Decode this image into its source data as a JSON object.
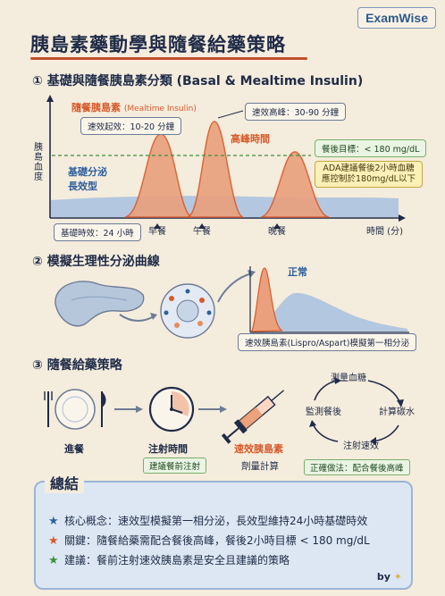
{
  "brand": "ExamWise",
  "title": "胰島素藥動學與隨餐給藥策略",
  "section1": {
    "title": "① 基礎與隨餐胰島素分類 (Basal & Mealtime Insulin)",
    "y_label": "胰島血度",
    "mealtime_label": "隨餐胰島素",
    "mealtime_label_en": "(Mealtime Insulin)",
    "onset_chip": "速效起效：10-20 分鐘",
    "peak_chip": "速效高峰：30-90 分鐘",
    "peak_label": "高峰時間",
    "basal_label_1": "基礎分泌",
    "basal_label_2": "長效型",
    "basal_duration_chip": "基礎時效：24 小時",
    "target_chip": "餐後目標：< 180 mg/dL",
    "ada_line1": "ADA建議餐後2小時血糖",
    "ada_line2": "應控制於180mg/dL以下",
    "meals": [
      "早餐",
      "午餐",
      "晚餐"
    ],
    "x_label": "時間 (分)"
  },
  "section2": {
    "title": "② 模擬生理性分泌曲線",
    "normal_label": "正常",
    "caption": "速效胰島素(Lispro/Aspart)模擬第一相分泌"
  },
  "section3": {
    "title": "③ 隨餐給藥策略",
    "step1_title": "進餐",
    "step2_title": "注射時間",
    "step2_tag": "建議餐前注射",
    "step3_title": "速效胰島素",
    "step3_sub": "劑量計算",
    "cycle": [
      "測量血糖",
      "計算碳水",
      "注射速效",
      "監測餐後"
    ],
    "correct_tag": "正確做法：配合餐後高峰"
  },
  "summary": {
    "title": "總結",
    "items": [
      {
        "text": "核心概念：速效型模擬第一相分泌，長效型維持24小時基礎時效",
        "color": "#2e5f9c"
      },
      {
        "text": "關鍵：隨餐給藥需配合餐後高峰，餐後2小時目標 < 180 mg/dL",
        "color": "#d85a2a"
      },
      {
        "text": "建議：餐前注射速效胰島素是安全且建議的策略",
        "color": "#3f8f3a"
      }
    ],
    "by": "by"
  },
  "colors": {
    "navy": "#1f2b48",
    "orange": "#d85a2a",
    "blue": "#2e5f9c",
    "green": "#3f8f3a"
  }
}
